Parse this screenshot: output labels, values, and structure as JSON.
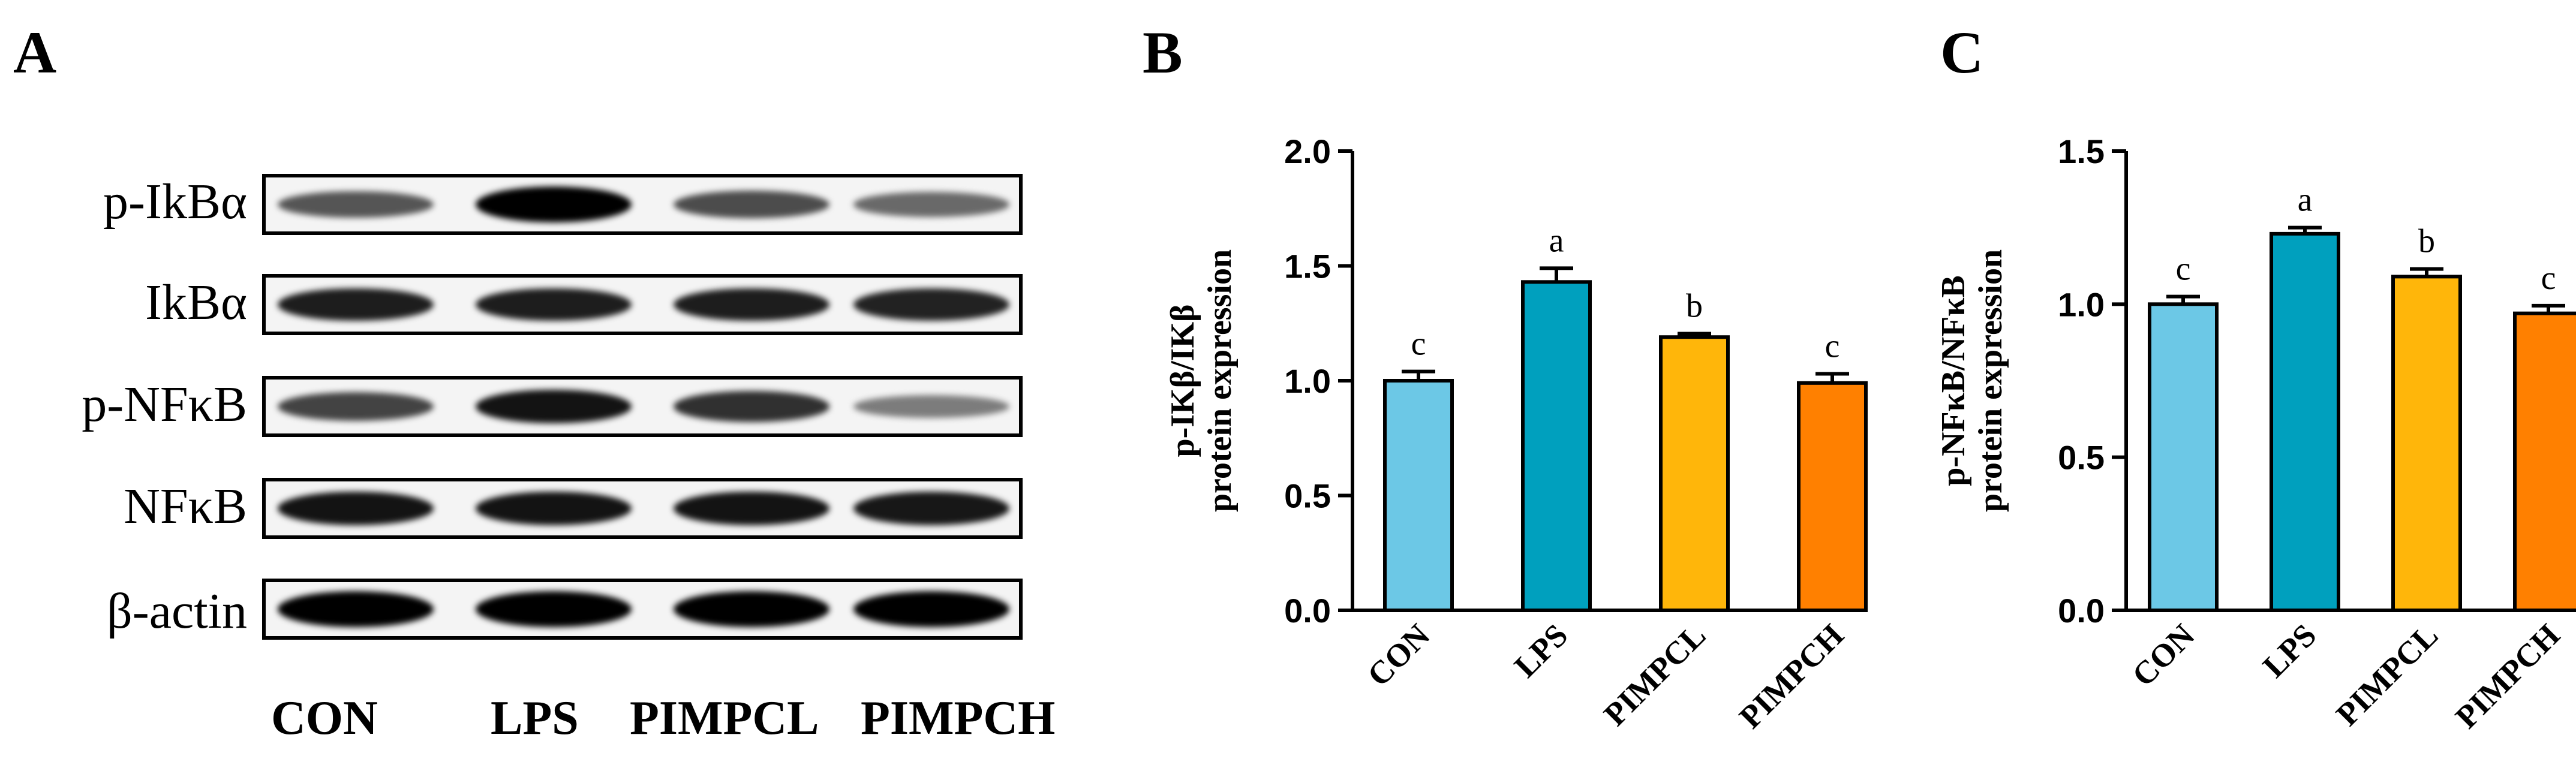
{
  "panel_letters": {
    "a": "A",
    "b": "B",
    "c": "C"
  },
  "blot": {
    "rows": [
      {
        "label": "p-IkBα",
        "intensities": [
          0.55,
          1.0,
          0.6,
          0.45
        ]
      },
      {
        "label": "IkBα",
        "intensities": [
          0.85,
          0.85,
          0.85,
          0.82
        ]
      },
      {
        "label": "p-NFκB",
        "intensities": [
          0.65,
          0.9,
          0.75,
          0.35
        ]
      },
      {
        "label": "NFκB",
        "intensities": [
          0.9,
          0.9,
          0.9,
          0.88
        ]
      },
      {
        "label": "β-actin",
        "intensities": [
          1.0,
          1.0,
          1.0,
          1.0
        ]
      }
    ],
    "lanes": [
      "CON",
      "LPS",
      "PIMPCL",
      "PIMPCH"
    ]
  },
  "chart_data": [
    {
      "type": "bar",
      "panel": "B",
      "categories": [
        "CON",
        "LPS",
        "PIMPCL",
        "PIMPCH"
      ],
      "values": [
        1.0,
        1.43,
        1.19,
        0.99
      ],
      "errors": [
        0.04,
        0.06,
        0.015,
        0.04
      ],
      "sig_labels": [
        "c",
        "a",
        "b",
        "c"
      ],
      "ylabel_line1": "p-IKβ/IKβ",
      "ylabel_line2": "protein expression",
      "ylim": [
        0,
        2.0
      ],
      "yticks": [
        "0.0",
        "0.5",
        "1.0",
        "1.5",
        "2.0"
      ],
      "colors": [
        "#6CC8E6",
        "#00A0BE",
        "#FFB60A",
        "#FF8000"
      ]
    },
    {
      "type": "bar",
      "panel": "C",
      "categories": [
        "CON",
        "LPS",
        "PIMPCL",
        "PIMPCH"
      ],
      "values": [
        1.0,
        1.23,
        1.09,
        0.97
      ],
      "errors": [
        0.025,
        0.02,
        0.025,
        0.025
      ],
      "sig_labels": [
        "c",
        "a",
        "b",
        "c"
      ],
      "ylabel_line1": "p-NFκB/NFκB",
      "ylabel_line2": "protein expression",
      "ylim": [
        0,
        1.5
      ],
      "yticks": [
        "0.0",
        "0.5",
        "1.0",
        "1.5"
      ],
      "colors": [
        "#6CC8E6",
        "#00A0BE",
        "#FFB60A",
        "#FF8000"
      ]
    }
  ]
}
